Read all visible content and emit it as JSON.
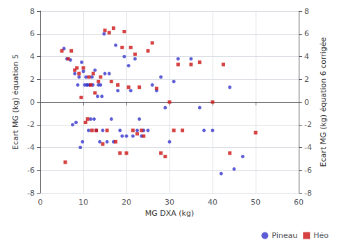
{
  "chart_data": {
    "type": "scatter",
    "xlabel": "MG DXA (kg)",
    "ylabel": "Ecart MG (kg) équation 5",
    "y2label": "Ecart MG (kg) équation 6 corrigée",
    "xlim": [
      0,
      60
    ],
    "xticks": [
      0,
      10,
      20,
      30,
      40,
      50,
      60
    ],
    "ylim": [
      -8,
      8
    ],
    "yticks": [
      -8,
      -6,
      -4,
      -2,
      0,
      2,
      4,
      6,
      8
    ],
    "y2lim": [
      -8,
      8
    ],
    "y2ticks": [
      -8,
      -6,
      -4,
      -2,
      0,
      2,
      4,
      6,
      8
    ],
    "grid": true,
    "legend": "lower right",
    "series": [
      {
        "name": "Pineau",
        "color": "#3333cc",
        "marker": "circle",
        "x": [
          5.5,
          6.2,
          7.0,
          7.5,
          8.0,
          8.3,
          8.7,
          9.0,
          9.3,
          9.6,
          9.8,
          10.0,
          10.3,
          10.6,
          10.8,
          11.0,
          11.2,
          11.5,
          11.7,
          12.0,
          12.2,
          12.5,
          12.7,
          13.0,
          13.3,
          13.5,
          13.8,
          14.0,
          14.3,
          14.5,
          14.8,
          15.0,
          15.5,
          16.0,
          16.5,
          17.0,
          17.5,
          18.0,
          18.5,
          19.0,
          19.5,
          20.0,
          20.5,
          21.0,
          21.5,
          22.0,
          22.5,
          23.0,
          23.5,
          24.0,
          25.0,
          26.0,
          27.0,
          28.0,
          29.0,
          30.0,
          31.0,
          32.0,
          35.0,
          37.0,
          38.0,
          40.0,
          42.0,
          44.0,
          45.0,
          47.0
        ],
        "values": [
          4.7,
          3.8,
          3.7,
          -2.0,
          2.5,
          -1.8,
          1.5,
          2.2,
          -4.0,
          3.5,
          -3.5,
          2.7,
          1.5,
          2.2,
          1.5,
          1.5,
          -2.5,
          1.5,
          -1.5,
          2.2,
          1.5,
          -1.5,
          2.8,
          -2.5,
          0.5,
          1.5,
          -3.5,
          1.5,
          0.5,
          -2.5,
          6.0,
          2.5,
          -3.5,
          2.5,
          -1.5,
          -3.5,
          5.0,
          1.0,
          -2.5,
          -3.0,
          4.0,
          -3.0,
          3.2,
          1.0,
          -3.0,
          3.8,
          -2.5,
          -1.5,
          -3.0,
          -2.5,
          -2.5,
          1.5,
          1.0,
          2.2,
          -0.5,
          -3.5,
          1.8,
          3.8,
          3.8,
          -0.5,
          -2.5,
          -2.5,
          -6.3,
          1.3,
          -5.9,
          -4.8
        ]
      },
      {
        "name": "Héo",
        "color": "#cc1111",
        "marker": "square",
        "x": [
          5.0,
          5.8,
          6.5,
          7.2,
          8.0,
          8.5,
          9.0,
          9.5,
          10.0,
          10.5,
          11.0,
          11.3,
          11.7,
          12.0,
          12.3,
          12.7,
          13.0,
          13.5,
          14.0,
          14.5,
          15.0,
          15.5,
          16.0,
          16.5,
          17.0,
          17.5,
          18.0,
          18.5,
          19.0,
          19.5,
          20.0,
          20.5,
          21.0,
          21.5,
          22.0,
          22.5,
          23.0,
          23.5,
          24.0,
          25.0,
          26.0,
          27.0,
          28.0,
          29.0,
          30.0,
          31.0,
          32.0,
          33.0,
          35.0,
          37.0,
          40.0,
          42.5,
          44.0,
          50.0
        ],
        "values": [
          4.5,
          -5.3,
          3.8,
          4.5,
          2.8,
          3.0,
          2.5,
          0.4,
          3.0,
          -1.8,
          -1.5,
          2.2,
          1.5,
          -2.5,
          2.5,
          0.8,
          -2.5,
          1.8,
          2.2,
          -3.7,
          6.3,
          -2.5,
          6.1,
          1.8,
          6.5,
          -3.5,
          1.5,
          -4.5,
          4.8,
          6.2,
          -4.5,
          1.3,
          4.8,
          -2.5,
          4.2,
          -2.8,
          1.3,
          -2.5,
          -3.0,
          4.5,
          5.2,
          1.2,
          -4.5,
          -4.8,
          0.0,
          -2.5,
          3.3,
          -2.5,
          3.3,
          3.5,
          0.0,
          3.3,
          -4.5,
          -2.7
        ]
      }
    ]
  }
}
